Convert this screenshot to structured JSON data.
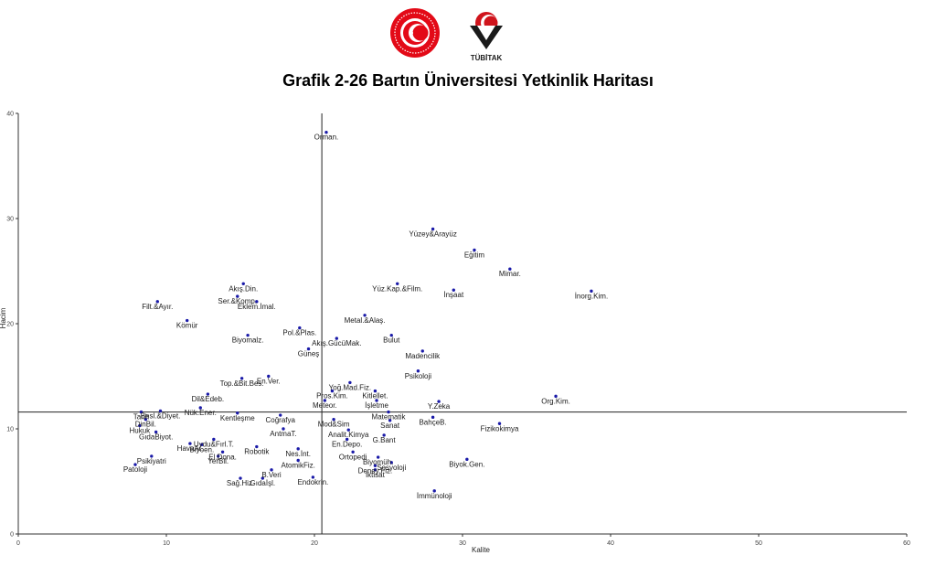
{
  "header": {
    "title": "Grafik 2-26 Bartın Üniversitesi Yetkinlik Haritası",
    "tubitak_text": "TÜBİTAK"
  },
  "chart_data": {
    "type": "scatter",
    "xlabel": "Kalite",
    "ylabel": "Hacim",
    "xlim": [
      0,
      60
    ],
    "ylim": [
      0,
      40
    ],
    "xticks": [
      0,
      10,
      20,
      30,
      40,
      50,
      60
    ],
    "yticks": [
      0,
      10,
      20,
      30,
      40
    ],
    "reference_lines": {
      "x": 20.5,
      "y": 11.6
    },
    "grid": false,
    "point_color": "#1a1aa8",
    "points": [
      {
        "label": "Orman.",
        "x": 20.8,
        "y": 38.2
      },
      {
        "label": "Yüzey&Arayüz",
        "x": 28.0,
        "y": 29.0
      },
      {
        "label": "Eğitim",
        "x": 30.8,
        "y": 27.0
      },
      {
        "label": "Mimar.",
        "x": 33.2,
        "y": 25.2
      },
      {
        "label": "İnorg.Kim.",
        "x": 38.7,
        "y": 23.1
      },
      {
        "label": "Yüz.Kap.&Film.",
        "x": 25.6,
        "y": 23.8
      },
      {
        "label": "İnşaat",
        "x": 29.4,
        "y": 23.2
      },
      {
        "label": "Akış.Din.",
        "x": 15.2,
        "y": 23.8
      },
      {
        "label": "Ser.&Komp.",
        "x": 14.8,
        "y": 22.6
      },
      {
        "label": "Eklem.İmal.",
        "x": 16.1,
        "y": 22.1
      },
      {
        "label": "Filt.&Ayır.",
        "x": 9.4,
        "y": 22.1
      },
      {
        "label": "Kömür",
        "x": 11.4,
        "y": 20.3
      },
      {
        "label": "Metal.&Alaş.",
        "x": 23.4,
        "y": 20.8
      },
      {
        "label": "Pol.&Plas.",
        "x": 19.0,
        "y": 19.6
      },
      {
        "label": "Biyomalz.",
        "x": 15.5,
        "y": 18.9
      },
      {
        "label": "Bulut",
        "x": 25.2,
        "y": 18.9
      },
      {
        "label": "Akış.GücüMak.",
        "x": 21.5,
        "y": 18.6
      },
      {
        "label": "Güneş",
        "x": 19.6,
        "y": 17.6
      },
      {
        "label": "Madencilik",
        "x": 27.3,
        "y": 17.4
      },
      {
        "label": "Psikoloji",
        "x": 27.0,
        "y": 15.5
      },
      {
        "label": "En.Ver.",
        "x": 16.9,
        "y": 15.0
      },
      {
        "label": "Yoğ.Mad.Fiz.",
        "x": 22.4,
        "y": 14.4
      },
      {
        "label": "Top.&Bit.Bes.",
        "x": 15.1,
        "y": 14.8
      },
      {
        "label": "Kitlellet.",
        "x": 24.1,
        "y": 13.6
      },
      {
        "label": "Pros.Kim.",
        "x": 21.2,
        "y": 13.6
      },
      {
        "label": "Dil&Edeb.",
        "x": 12.8,
        "y": 13.3
      },
      {
        "label": "Org.Kim.",
        "x": 36.3,
        "y": 13.1
      },
      {
        "label": "Y.Zeka",
        "x": 28.4,
        "y": 12.6
      },
      {
        "label": "İşletme",
        "x": 24.2,
        "y": 12.7
      },
      {
        "label": "Meteor.",
        "x": 20.7,
        "y": 12.7
      },
      {
        "label": "Matematik",
        "x": 25.0,
        "y": 11.6
      },
      {
        "label": "Tarih",
        "x": 8.3,
        "y": 11.6
      },
      {
        "label": "Besl.&Diyet.",
        "x": 9.6,
        "y": 11.7
      },
      {
        "label": "Nük.Ener.",
        "x": 12.3,
        "y": 12.0
      },
      {
        "label": "Kentleşme",
        "x": 14.8,
        "y": 11.5
      },
      {
        "label": "Coğrafya",
        "x": 17.7,
        "y": 11.3
      },
      {
        "label": "Sanat",
        "x": 25.1,
        "y": 10.8
      },
      {
        "label": "BahçeB.",
        "x": 28.0,
        "y": 11.1
      },
      {
        "label": "DinBil.",
        "x": 8.6,
        "y": 10.9
      },
      {
        "label": "Mod&Sim",
        "x": 21.3,
        "y": 10.9
      },
      {
        "label": "Fizikokimya",
        "x": 32.5,
        "y": 10.5
      },
      {
        "label": "Hukuk",
        "x": 8.2,
        "y": 10.3
      },
      {
        "label": "GıdaBiyot.",
        "x": 9.3,
        "y": 9.7
      },
      {
        "label": "AntmaT.",
        "x": 17.9,
        "y": 10.0
      },
      {
        "label": "Analit.Kimya",
        "x": 22.3,
        "y": 9.9
      },
      {
        "label": "Uydu&Fırl.T.",
        "x": 13.2,
        "y": 9.0
      },
      {
        "label": "HavaAr.",
        "x": 11.6,
        "y": 8.6
      },
      {
        "label": "En.Depo.",
        "x": 22.2,
        "y": 9.0
      },
      {
        "label": "G.Bant",
        "x": 24.7,
        "y": 9.4
      },
      {
        "label": "Nes.İnt.",
        "x": 18.9,
        "y": 8.1
      },
      {
        "label": "Robotik",
        "x": 16.1,
        "y": 8.3
      },
      {
        "label": "Biyoen.",
        "x": 12.4,
        "y": 8.5
      },
      {
        "label": "El.Dona.",
        "x": 13.8,
        "y": 7.8
      },
      {
        "label": "Ortopedi",
        "x": 22.6,
        "y": 7.8
      },
      {
        "label": "Biyomüh.",
        "x": 24.3,
        "y": 7.3
      },
      {
        "label": "AtomikFiz.",
        "x": 18.9,
        "y": 7.0
      },
      {
        "label": "Psikiyatri",
        "x": 9.0,
        "y": 7.4
      },
      {
        "label": "YerBil.",
        "x": 13.5,
        "y": 7.4
      },
      {
        "label": "Biyok.Gen.",
        "x": 30.3,
        "y": 7.1
      },
      {
        "label": "Deney.Fiz.",
        "x": 24.1,
        "y": 6.5
      },
      {
        "label": "Sosyoloji",
        "x": 25.2,
        "y": 6.8
      },
      {
        "label": "İktisat",
        "x": 24.1,
        "y": 6.1
      },
      {
        "label": "B.Veri",
        "x": 17.1,
        "y": 6.1
      },
      {
        "label": "Patoloji",
        "x": 7.9,
        "y": 6.6
      },
      {
        "label": "Sağ.Hiz.",
        "x": 15.0,
        "y": 5.3
      },
      {
        "label": "Gıdaİşl.",
        "x": 16.5,
        "y": 5.3
      },
      {
        "label": "Endokrin.",
        "x": 19.9,
        "y": 5.4
      },
      {
        "label": "İmmünoloji",
        "x": 28.1,
        "y": 4.1
      }
    ]
  }
}
